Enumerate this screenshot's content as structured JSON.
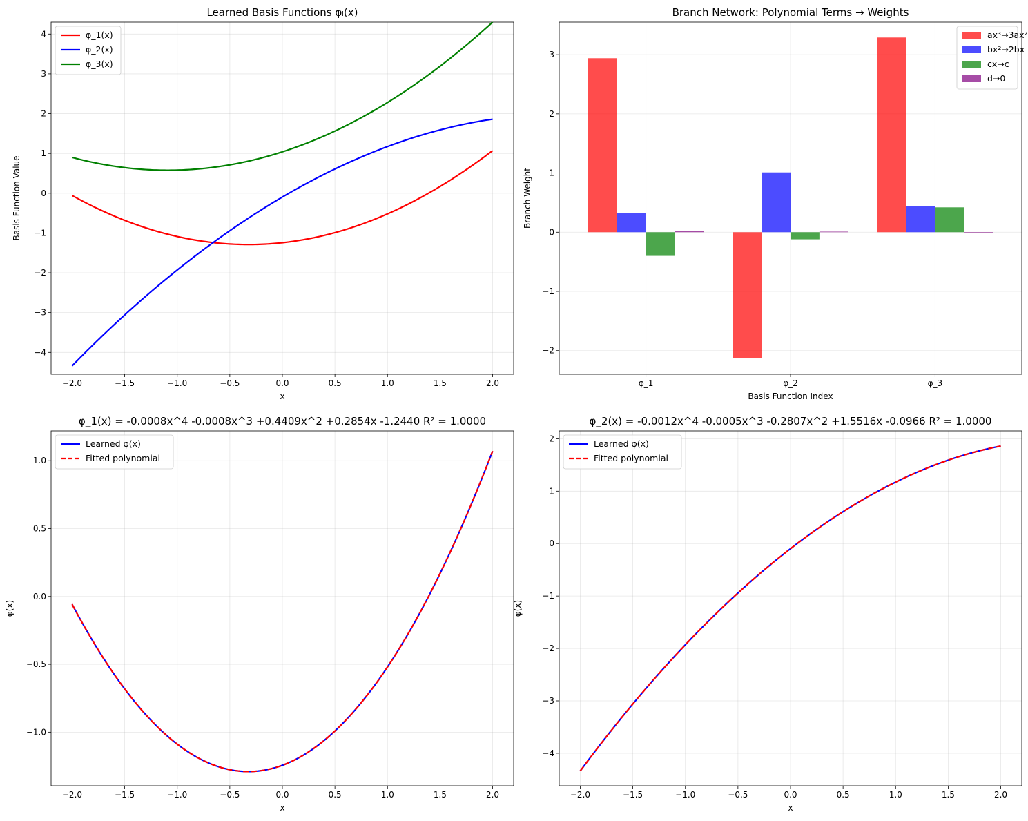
{
  "chart_data": [
    {
      "id": "basis",
      "type": "line",
      "title": "Learned Basis Functions φᵢ(x)",
      "xlabel": "x",
      "ylabel": "Basis Function Value",
      "xlim": [
        -2.2,
        2.2
      ],
      "ylim": [
        -4.55,
        4.3
      ],
      "xticks": [
        -2.0,
        -1.5,
        -1.0,
        -0.5,
        0.0,
        0.5,
        1.0,
        1.5,
        2.0
      ],
      "yticks": [
        -4,
        -3,
        -2,
        -1,
        0,
        1,
        2,
        3,
        4
      ],
      "grid": true,
      "legend": "top-left",
      "series": [
        {
          "name": "φ_1(x)",
          "color": "#ff0000",
          "coeffs": [
            -0.0008,
            -0.0008,
            0.4409,
            0.2854,
            -1.244
          ]
        },
        {
          "name": "φ_2(x)",
          "color": "#0000ff",
          "coeffs": [
            -0.0012,
            -0.0005,
            -0.2807,
            1.5516,
            -0.0966
          ]
        },
        {
          "name": "φ_3(x)",
          "color": "#008000",
          "coeffs": [
            0,
            0,
            0.39,
            0.85,
            1.04
          ]
        }
      ]
    },
    {
      "id": "branch",
      "type": "bar",
      "title": "Branch Network: Polynomial Terms → Weights",
      "xlabel": "Basis Function Index",
      "ylabel": "Branch Weight",
      "categories": [
        "φ_1",
        "φ_2",
        "φ_3"
      ],
      "ylim": [
        -2.4,
        3.55
      ],
      "yticks": [
        -2,
        -1,
        0,
        1,
        2,
        3
      ],
      "grid": true,
      "legend": "top-right",
      "series": [
        {
          "name": "ax³→3ax²",
          "color": "#ff0000",
          "values": [
            2.94,
            -2.13,
            3.29
          ]
        },
        {
          "name": "bx²→2bx",
          "color": "#0000ff",
          "values": [
            0.33,
            1.01,
            0.44
          ]
        },
        {
          "name": "cx→c",
          "color": "#008000",
          "values": [
            -0.4,
            -0.12,
            0.42
          ]
        },
        {
          "name": "d→0",
          "color": "#800080",
          "values": [
            0.02,
            0.01,
            -0.02
          ]
        }
      ]
    },
    {
      "id": "fit1",
      "type": "line",
      "title": "φ_1(x) = -0.0008x^4 -0.0008x^3 +0.4409x^2 +0.2854x -1.2440   R² = 1.0000",
      "xlabel": "x",
      "ylabel": "φ(x)",
      "xlim": [
        -2.2,
        2.2
      ],
      "ylim": [
        -1.395,
        1.22
      ],
      "xticks": [
        -2.0,
        -1.5,
        -1.0,
        -0.5,
        0.0,
        0.5,
        1.0,
        1.5,
        2.0
      ],
      "yticks": [
        -1.0,
        -0.5,
        0.0,
        0.5,
        1.0
      ],
      "grid": true,
      "legend": "top-left",
      "series": [
        {
          "name": "Learned φ(x)",
          "color": "#0000ff",
          "style": "solid",
          "coeffs": [
            -0.0008,
            -0.0008,
            0.4409,
            0.2854,
            -1.244
          ]
        },
        {
          "name": "Fitted polynomial",
          "color": "#ff0000",
          "style": "dashed",
          "coeffs": [
            -0.0008,
            -0.0008,
            0.4409,
            0.2854,
            -1.244
          ]
        }
      ]
    },
    {
      "id": "fit2",
      "type": "line",
      "title": "φ_2(x) = -0.0012x^4 -0.0005x^3 -0.2807x^2 +1.5516x -0.0966   R² = 1.0000",
      "xlabel": "x",
      "ylabel": "φ(x)",
      "xlim": [
        -2.2,
        2.2
      ],
      "ylim": [
        -4.62,
        2.15
      ],
      "xticks": [
        -2.0,
        -1.5,
        -1.0,
        -0.5,
        0.0,
        0.5,
        1.0,
        1.5,
        2.0
      ],
      "yticks": [
        -4,
        -3,
        -2,
        -1,
        0,
        1,
        2
      ],
      "grid": true,
      "legend": "top-left",
      "series": [
        {
          "name": "Learned φ(x)",
          "color": "#0000ff",
          "style": "solid",
          "coeffs": [
            -0.0012,
            -0.0005,
            -0.2807,
            1.5516,
            -0.0966
          ]
        },
        {
          "name": "Fitted polynomial",
          "color": "#ff0000",
          "style": "dashed",
          "coeffs": [
            -0.0012,
            -0.0005,
            -0.2807,
            1.5516,
            -0.0966
          ]
        }
      ]
    }
  ]
}
